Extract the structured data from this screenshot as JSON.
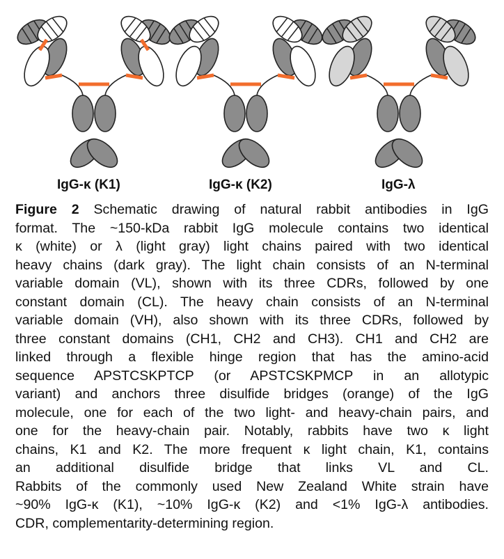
{
  "panels": [
    {
      "label": "IgG-κ (K1)",
      "light_chain": "kappa",
      "vl_cl_bridge": true
    },
    {
      "label": "IgG-κ (K2)",
      "light_chain": "kappa",
      "vl_cl_bridge": false
    },
    {
      "label": "IgG-λ",
      "light_chain": "lambda",
      "vl_cl_bridge": false
    }
  ],
  "colors": {
    "heavy_chain": "#8c8c8c",
    "kappa_light_chain": "#ffffff",
    "lambda_light_chain": "#d6d6d6",
    "disulfide_bridge": "#f26d2d",
    "outline": "#222222"
  },
  "caption": {
    "label": "Figure 2",
    "lines": [
      " Schematic drawing of natural rabbit antibodies in IgG",
      "format. The ~150-kDa rabbit IgG molecule contains two identical",
      "κ (white) or λ (light gray) light chains paired with two identical",
      "heavy chains (dark gray). The light chain consists of an N-terminal",
      "variable domain (VL), shown with its three CDRs, followed by one",
      "constant domain (CL). The heavy chain consists of an N-terminal",
      "variable domain (VH), also shown with its three CDRs, followed by",
      "three constant domains (CH1, CH2 and CH3). CH1 and CH2 are",
      "linked through a flexible hinge region that has the amino-acid",
      "sequence APSTCSKPTCP (or APSTCSKPMCP in an allotypic",
      "variant) and anchors three disulfide bridges (orange) of the IgG",
      "molecule, one for each of the two light- and heavy-chain pairs, and",
      "one for the heavy-chain pair. Notably, rabbits have two κ light",
      "chains, K1 and K2. The more frequent κ light chain, K1, contains",
      "an additional disulfide bridge that links VL and CL.",
      "Rabbits of the commonly used New Zealand White strain have",
      "~90% IgG-κ (K1), ~10% IgG-κ (K2) and <1% IgG-λ antibodies.",
      "CDR, complementarity-determining region."
    ]
  }
}
